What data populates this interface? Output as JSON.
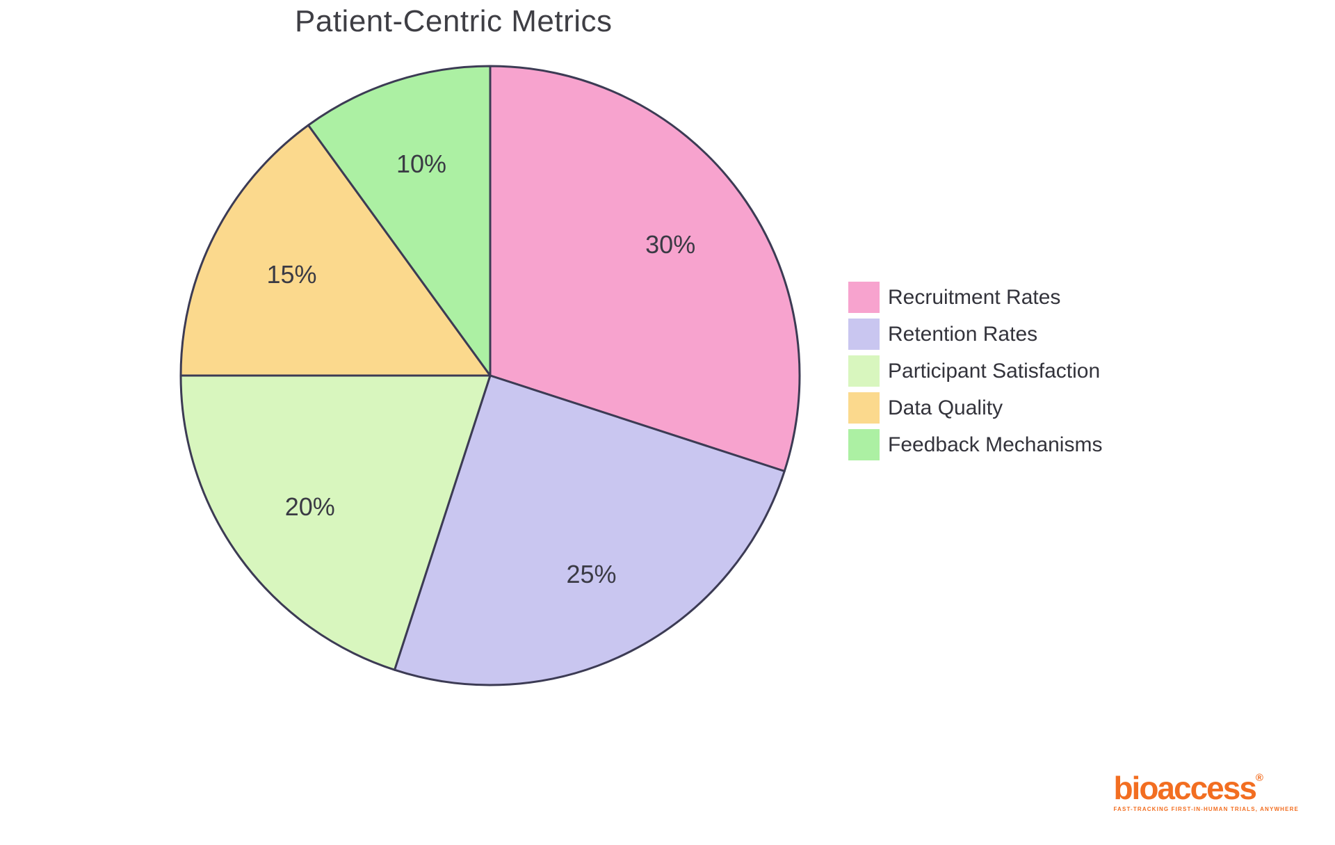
{
  "title": "Patient-Centric Metrics",
  "chart_data": {
    "type": "pie",
    "title": "Patient-Centric Metrics",
    "labels": [
      "Recruitment Rates",
      "Retention Rates",
      "Participant Satisfaction",
      "Data Quality",
      "Feedback Mechanisms"
    ],
    "values": [
      30,
      25,
      20,
      15,
      10
    ],
    "percent_labels": [
      "30%",
      "25%",
      "20%",
      "15%",
      "10%"
    ],
    "colors": [
      "#F7A3CE",
      "#C9C6F0",
      "#D8F6BE",
      "#FBD98D",
      "#ACF0A3"
    ],
    "outline_color": "#3C3B54",
    "outline_width": 3,
    "label_color": "#3A3A44",
    "start_angle_deg": 0,
    "direction": "clockwise",
    "label_distance": 0.72,
    "legend_position": "right",
    "center": [
      705,
      540
    ],
    "radius": 445
  },
  "logo": {
    "wordmark": "bioaccess",
    "registered_mark": "®",
    "tagline": "FAST-TRACKING FIRST-IN-HUMAN TRIALS, ANYWHERE",
    "color": "#F26E21"
  }
}
